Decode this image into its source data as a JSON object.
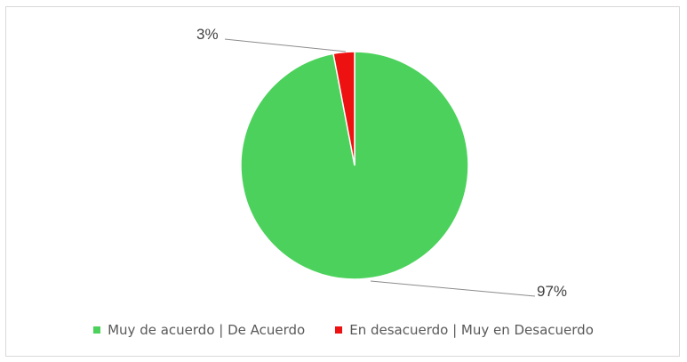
{
  "chart_data": {
    "type": "pie",
    "categories": [
      "Muy de acuerdo | De Acuerdo",
      "En desacuerdo | Muy en Desacuerdo"
    ],
    "values": [
      97,
      3
    ],
    "data_labels": [
      "97%",
      "3%"
    ],
    "colors": [
      "#4cd25c",
      "#ee1111"
    ],
    "title": "",
    "legend_position": "bottom"
  }
}
